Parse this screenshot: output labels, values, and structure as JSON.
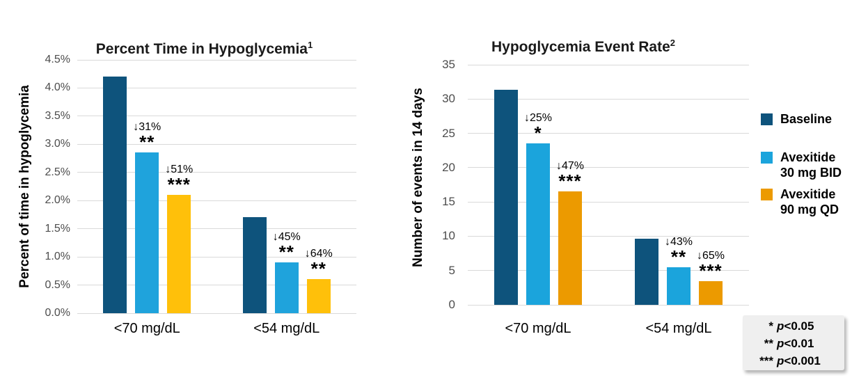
{
  "chart_data": [
    {
      "type": "bar",
      "title": "Percent Time in Hypoglycemia",
      "title_superscript": "1",
      "ylabel": "Percent of time in hypoglycemia",
      "xlabel": "",
      "categories": [
        "<70 mg/dL",
        "<54 mg/dL"
      ],
      "series": [
        {
          "name": "Baseline",
          "color": "#0E537C",
          "values": [
            4.2,
            1.7
          ]
        },
        {
          "name": "Avexitide 30 mg BID",
          "color": "#1FA3DC",
          "values": [
            2.85,
            0.9
          ]
        },
        {
          "name": "Avexitide 90 mg QD",
          "color": "#FFC00A",
          "values": [
            2.1,
            0.6
          ]
        }
      ],
      "annotations": [
        {
          "category": 0,
          "series": 1,
          "change": "↓31%",
          "significance": "**"
        },
        {
          "category": 0,
          "series": 2,
          "change": "↓51%",
          "significance": "***"
        },
        {
          "category": 1,
          "series": 1,
          "change": "↓45%",
          "significance": "**"
        },
        {
          "category": 1,
          "series": 2,
          "change": "↓64%",
          "significance": "**"
        }
      ],
      "ylim": [
        0,
        4.5
      ],
      "ytick_step": 0.5,
      "ytick_decimals": 1,
      "ytick_suffix": "%",
      "grid": true,
      "legend_position": "none"
    },
    {
      "type": "bar",
      "title": "Hypoglycemia Event Rate",
      "title_superscript": "2",
      "ylabel": "Number of events in 14 days",
      "xlabel": "",
      "categories": [
        "<70 mg/dL",
        "<54 mg/dL"
      ],
      "series": [
        {
          "name": "Baseline",
          "color": "#0E537C",
          "values": [
            31.3,
            9.6
          ]
        },
        {
          "name": "Avexitide 30 mg BID",
          "color": "#1BA4DC",
          "values": [
            23.5,
            5.5
          ]
        },
        {
          "name": "Avexitide 90 mg QD",
          "color": "#EC9A00",
          "values": [
            16.5,
            3.4
          ]
        }
      ],
      "annotations": [
        {
          "category": 0,
          "series": 1,
          "change": "↓25%",
          "significance": "*"
        },
        {
          "category": 0,
          "series": 2,
          "change": "↓47%",
          "significance": "***"
        },
        {
          "category": 1,
          "series": 1,
          "change": "↓43%",
          "significance": "**"
        },
        {
          "category": 1,
          "series": 2,
          "change": "↓65%",
          "significance": "***"
        }
      ],
      "ylim": [
        0,
        35
      ],
      "ytick_step": 5,
      "ytick_decimals": 0,
      "ytick_suffix": "",
      "grid": true,
      "legend_position": "right"
    }
  ],
  "legend": {
    "items": [
      {
        "line1": "Baseline",
        "line2": "",
        "color": "#0E537C"
      },
      {
        "line1": "Avexitide",
        "line2": "30 mg BID",
        "color": "#1BA4DC"
      },
      {
        "line1": "Avexitide",
        "line2": "90 mg QD",
        "color": "#EC9A00"
      }
    ]
  },
  "significance_key": {
    "lines": [
      {
        "stars": "*",
        "variable": "p",
        "comparison": "<0.05"
      },
      {
        "stars": "**",
        "variable": "p",
        "comparison": "<0.01"
      },
      {
        "stars": "***",
        "variable": "p",
        "comparison": "<0.001"
      }
    ]
  }
}
